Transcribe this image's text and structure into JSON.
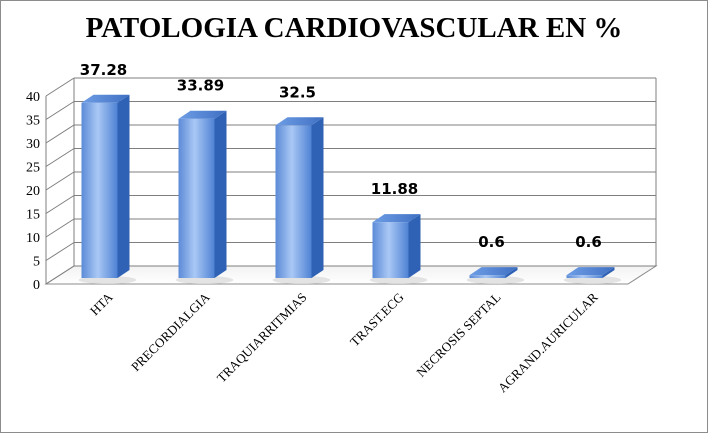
{
  "chart_data": {
    "type": "bar",
    "title": "PATOLOGIA CARDIOVASCULAR EN %",
    "categories": [
      "HTA",
      "PRECORDIALGIA",
      "TRAQUIARRITMIAS",
      "TRAST.ECG",
      "NECROSIS SEPTAL",
      "AGRAND.AURICULAR"
    ],
    "values": [
      37.28,
      33.89,
      32.5,
      11.88,
      0.6,
      0.6
    ],
    "data_labels": [
      "37.28",
      "33.89",
      "32.5",
      "11.88",
      "0.6",
      "0.6"
    ],
    "xlabel": "",
    "ylabel": "",
    "ylim": [
      0,
      40
    ],
    "yticks": [
      "0",
      "5",
      "10",
      "15",
      "20",
      "25",
      "30",
      "35",
      "40"
    ],
    "grid": true,
    "style": "3d-cylinder",
    "colors": {
      "bar_light": "#a9c8f5",
      "bar_mid": "#6f9ee6",
      "bar_dark": "#2f62b4",
      "grid": "#7f7f7f"
    }
  }
}
